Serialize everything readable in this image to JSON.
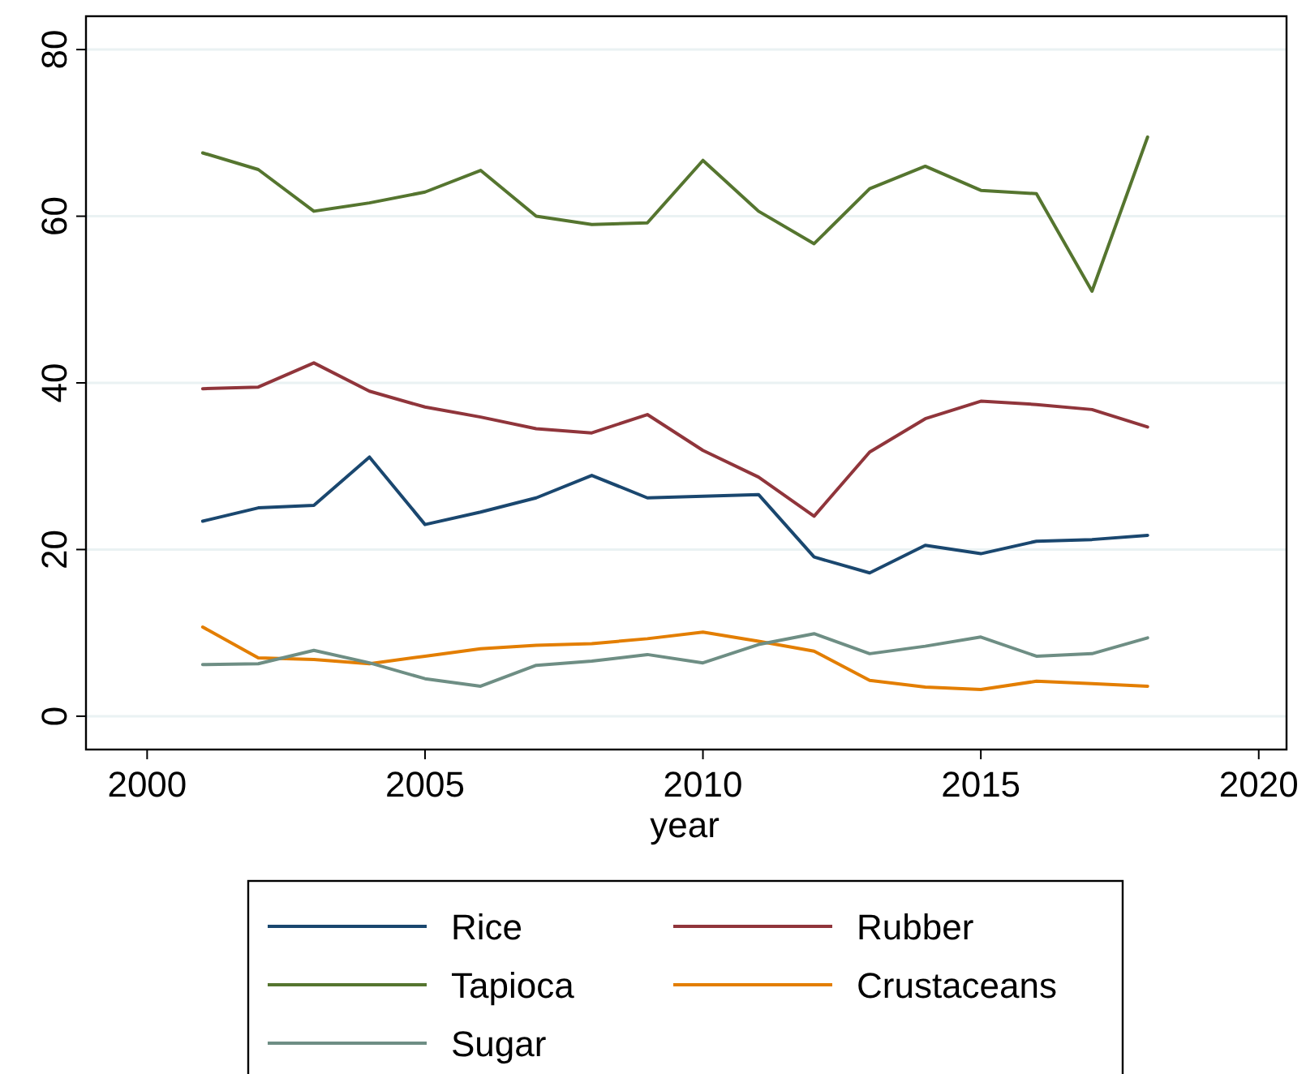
{
  "chart_data": {
    "type": "line",
    "xlabel": "year",
    "xlim": [
      1998.9,
      2020.5
    ],
    "ylim": [
      -4,
      84
    ],
    "xticks": [
      2000,
      2005,
      2010,
      2015,
      2020
    ],
    "yticks": [
      0,
      20,
      40,
      60,
      80
    ],
    "grid": "y",
    "legend": "bottom",
    "x": [
      2001,
      2002,
      2003,
      2004,
      2005,
      2006,
      2007,
      2008,
      2009,
      2010,
      2011,
      2012,
      2013,
      2014,
      2015,
      2016,
      2017,
      2018
    ],
    "series": [
      {
        "name": "Rice",
        "color": "#1a476f",
        "values": [
          23.4,
          25.0,
          25.3,
          31.1,
          23.0,
          24.5,
          26.2,
          28.9,
          26.2,
          26.4,
          26.6,
          19.1,
          17.2,
          20.5,
          19.5,
          21.0,
          21.2,
          21.7
        ]
      },
      {
        "name": "Rubber",
        "color": "#90353b",
        "values": [
          39.3,
          39.5,
          42.4,
          39.0,
          37.1,
          35.9,
          34.5,
          34.0,
          36.2,
          31.9,
          28.7,
          24.0,
          31.7,
          35.7,
          37.8,
          37.4,
          36.8,
          34.7
        ]
      },
      {
        "name": "Tapioca",
        "color": "#55752f",
        "values": [
          67.6,
          65.6,
          60.6,
          61.6,
          62.9,
          65.5,
          60.0,
          59.0,
          59.2,
          66.7,
          60.6,
          56.7,
          63.3,
          66.0,
          63.1,
          62.7,
          51.0,
          69.5
        ]
      },
      {
        "name": "Crustaceans",
        "color": "#e37e00",
        "values": [
          10.7,
          7.0,
          6.8,
          6.3,
          7.2,
          8.1,
          8.5,
          8.7,
          9.3,
          10.1,
          9.0,
          7.8,
          4.3,
          3.5,
          3.2,
          4.2,
          3.9,
          3.6
        ]
      },
      {
        "name": "Sugar",
        "color": "#6e8e84",
        "values": [
          6.2,
          6.3,
          7.9,
          6.4,
          4.5,
          3.6,
          6.1,
          6.6,
          7.4,
          6.4,
          8.6,
          9.9,
          7.5,
          8.4,
          9.5,
          7.2,
          7.5,
          9.4
        ]
      }
    ]
  }
}
